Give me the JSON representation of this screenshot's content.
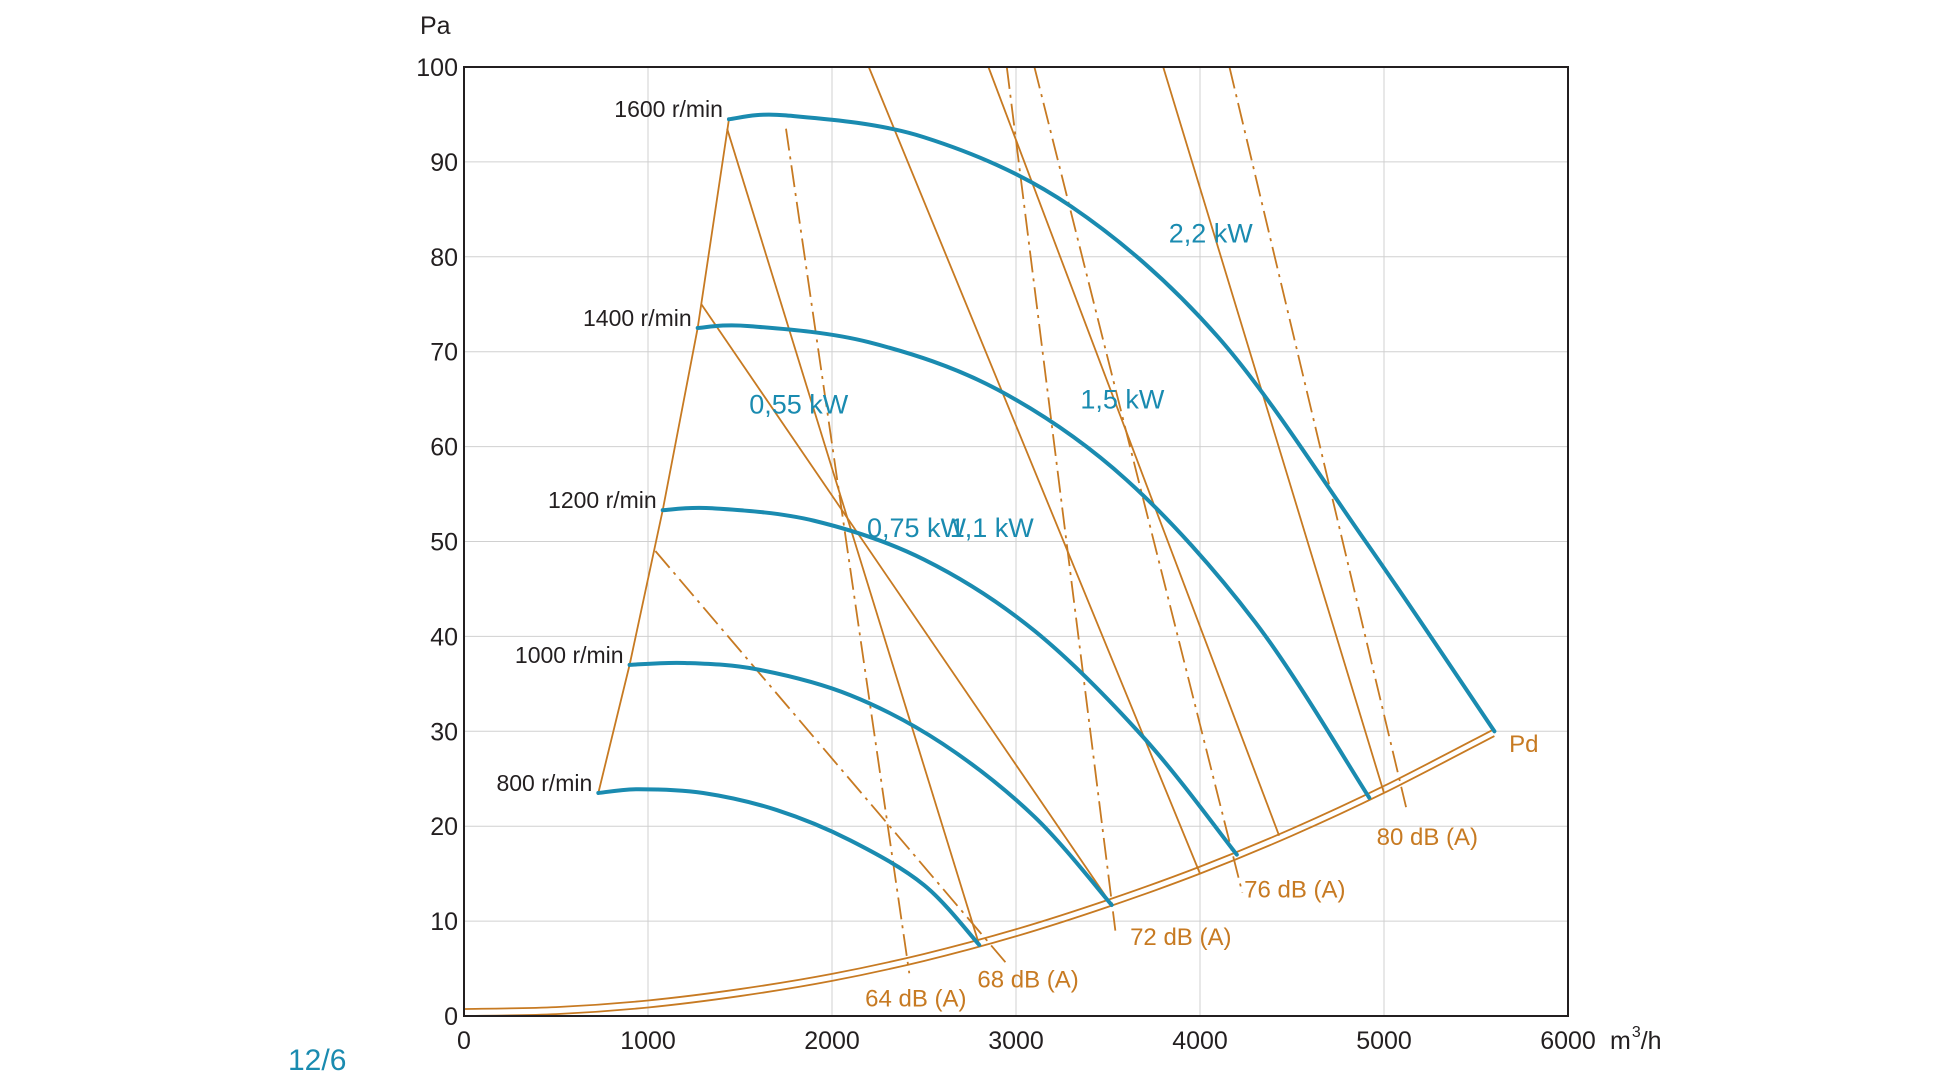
{
  "page_label": "12/6",
  "colors": {
    "fan_curve": "#1a8bb0",
    "sound_line": "#c77a22",
    "power_line": "#8a5a1e",
    "grid": "#d0d0d0",
    "axis": "#231f20",
    "page_label": "#1a8bb0"
  },
  "chart_data": {
    "type": "line",
    "title": "",
    "xlabel_unit": "m",
    "xlabel_exp": "3",
    "xlabel_suffix": "/h",
    "ylabel": "Pa",
    "xlim": [
      0,
      6000
    ],
    "ylim": [
      0,
      100
    ],
    "xticks": [
      0,
      1000,
      2000,
      3000,
      4000,
      5000,
      6000
    ],
    "yticks": [
      0,
      10,
      20,
      30,
      40,
      50,
      60,
      70,
      80,
      90,
      100
    ],
    "grid": true,
    "fan_curves": [
      {
        "label": "800 r/min",
        "points": [
          [
            730,
            23.5
          ],
          [
            950,
            23.9
          ],
          [
            1300,
            23.5
          ],
          [
            1700,
            21.7
          ],
          [
            2100,
            18.5
          ],
          [
            2500,
            13.8
          ],
          [
            2800,
            7.5
          ]
        ]
      },
      {
        "label": "1000 r/min",
        "points": [
          [
            900,
            37
          ],
          [
            1200,
            37.2
          ],
          [
            1600,
            36.5
          ],
          [
            2100,
            33.8
          ],
          [
            2600,
            28.7
          ],
          [
            3100,
            21.0
          ],
          [
            3520,
            11.7
          ]
        ]
      },
      {
        "label": "1200 r/min",
        "points": [
          [
            1080,
            53.3
          ],
          [
            1350,
            53.5
          ],
          [
            1900,
            52.2
          ],
          [
            2500,
            48.1
          ],
          [
            3100,
            40.6
          ],
          [
            3700,
            29.2
          ],
          [
            4200,
            17.0
          ]
        ]
      },
      {
        "label": "1400 r/min",
        "points": [
          [
            1270,
            72.5
          ],
          [
            1550,
            72.7
          ],
          [
            2200,
            71.0
          ],
          [
            2900,
            66.0
          ],
          [
            3600,
            56.5
          ],
          [
            4300,
            41.5
          ],
          [
            4920,
            23.0
          ]
        ]
      },
      {
        "label": "1600 r/min",
        "points": [
          [
            1440,
            94.5
          ],
          [
            1750,
            94.9
          ],
          [
            2500,
            92.6
          ],
          [
            3300,
            85.3
          ],
          [
            4100,
            71.5
          ],
          [
            4900,
            50.0
          ],
          [
            5600,
            30.0
          ]
        ]
      }
    ],
    "pd_curve": {
      "label": "Pd",
      "points": [
        [
          0,
          0
        ],
        [
          500,
          0.2
        ],
        [
          1000,
          0.9
        ],
        [
          1500,
          2.1
        ],
        [
          2000,
          3.7
        ],
        [
          2500,
          5.8
        ],
        [
          3000,
          8.4
        ],
        [
          3500,
          11.5
        ],
        [
          4000,
          15.0
        ],
        [
          4500,
          19.0
        ],
        [
          5000,
          23.5
        ],
        [
          5600,
          29.5
        ]
      ]
    },
    "system_limit": {
      "points": [
        [
          730,
          23.5
        ],
        [
          900,
          37
        ],
        [
          1080,
          53.3
        ],
        [
          1270,
          72.5
        ],
        [
          1440,
          94.5
        ]
      ]
    },
    "power_lines": [
      {
        "label": "0,55 kW",
        "points": [
          [
            1430,
            93.5
          ],
          [
            2800,
            7.5
          ]
        ]
      },
      {
        "label": "0,75 kW",
        "points": [
          [
            1290,
            75.0
          ],
          [
            3520,
            11.7
          ]
        ]
      },
      {
        "label": "1,1 kW",
        "points": [
          [
            2200,
            100
          ],
          [
            4000,
            15.0
          ]
        ]
      },
      {
        "label": "1,5 kW",
        "points": [
          [
            2850,
            100
          ],
          [
            4430,
            19.0
          ]
        ]
      },
      {
        "label": "2,2 kW",
        "points": [
          [
            3800,
            100
          ],
          [
            5000,
            23.5
          ]
        ]
      }
    ],
    "sound_lines": [
      {
        "label": "64 dB (A)",
        "points": [
          [
            1750,
            93.5
          ],
          [
            2420,
            4.5
          ]
        ]
      },
      {
        "label": "68 dB (A)",
        "points": [
          [
            1040,
            49.0
          ],
          [
            2950,
            5.5
          ]
        ]
      },
      {
        "label": "72 dB (A)",
        "points": [
          [
            2950,
            100
          ],
          [
            3540,
            9.0
          ]
        ]
      },
      {
        "label": "76 dB (A)",
        "points": [
          [
            3100,
            100
          ],
          [
            4230,
            13.0
          ]
        ]
      },
      {
        "label": "80 dB (A)",
        "points": [
          [
            4160,
            100
          ],
          [
            5120,
            22.0
          ]
        ]
      }
    ],
    "fan_labels": [
      {
        "text": "800 r/min",
        "at": [
          730,
          23.5
        ]
      },
      {
        "text": "1000 r/min",
        "at": [
          900,
          37
        ]
      },
      {
        "text": "1200 r/min",
        "at": [
          1080,
          53.3
        ]
      },
      {
        "text": "1400 r/min",
        "at": [
          1270,
          72.5
        ]
      },
      {
        "text": "1600 r/min",
        "at": [
          1440,
          94.5
        ]
      }
    ],
    "power_labels": [
      {
        "text": "0,55 kW",
        "at": [
          1550,
          63.5
        ]
      },
      {
        "text": "0,75 kW",
        "at": [
          2190,
          50.5
        ]
      },
      {
        "text": "1,1 kW",
        "at": [
          2640,
          50.5
        ]
      },
      {
        "text": "1,5 kW",
        "at": [
          3350,
          64.0
        ]
      },
      {
        "text": "2,2 kW",
        "at": [
          3830,
          81.5
        ]
      }
    ],
    "db_labels": [
      {
        "text": "64 dB (A)",
        "at": [
          2180,
          1.0
        ]
      },
      {
        "text": "68 dB (A)",
        "at": [
          2790,
          3.0
        ]
      },
      {
        "text": "72 dB (A)",
        "at": [
          3620,
          7.5
        ]
      },
      {
        "text": "76 dB (A)",
        "at": [
          4240,
          12.5
        ]
      },
      {
        "text": "80 dB (A)",
        "at": [
          4960,
          18.0
        ]
      }
    ],
    "pd_label": {
      "text": "Pd",
      "at": [
        5680,
        27.8
      ]
    }
  }
}
